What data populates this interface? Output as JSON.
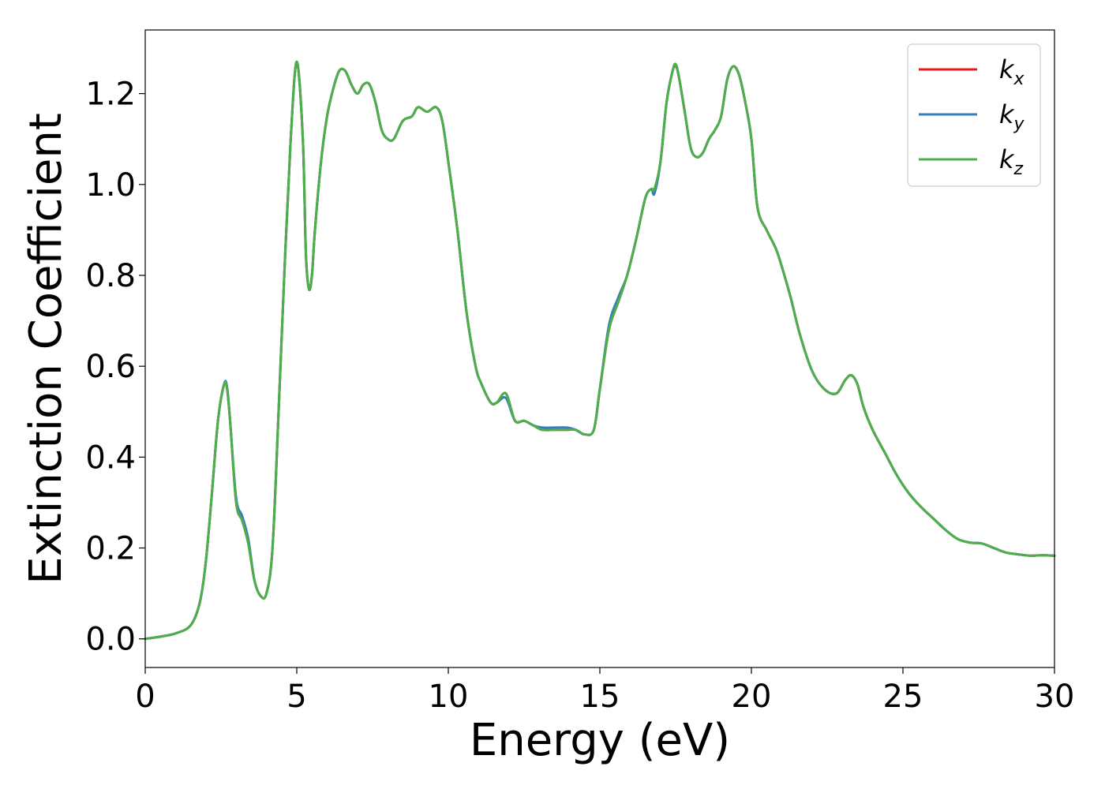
{
  "chart_data": {
    "type": "line",
    "title": "",
    "xlabel": "Energy (eV)",
    "ylabel": "Extinction Coefficient",
    "xlim": [
      0,
      30
    ],
    "ylim": [
      -0.063,
      1.34
    ],
    "grid": false,
    "legend_position": "top-right",
    "xticks": [
      0,
      5,
      10,
      15,
      20,
      25,
      30
    ],
    "yticks": [
      0.0,
      0.2,
      0.4,
      0.6,
      0.8,
      1.0,
      1.2
    ],
    "xtick_labels": [
      "0",
      "5",
      "10",
      "15",
      "20",
      "25",
      "30"
    ],
    "ytick_labels": [
      "0.0",
      "0.2",
      "0.4",
      "0.6",
      "0.8",
      "1.0",
      "1.2"
    ],
    "x": [
      0,
      0.5,
      1.0,
      1.5,
      1.8,
      2.0,
      2.2,
      2.4,
      2.6,
      2.7,
      2.8,
      3.0,
      3.2,
      3.4,
      3.6,
      3.8,
      4.0,
      4.2,
      4.4,
      4.6,
      4.8,
      5.0,
      5.2,
      5.3,
      5.4,
      5.5,
      5.6,
      5.8,
      6.0,
      6.2,
      6.4,
      6.6,
      6.8,
      7.0,
      7.2,
      7.4,
      7.6,
      7.8,
      8.0,
      8.2,
      8.5,
      8.8,
      9.0,
      9.3,
      9.6,
      9.8,
      10.0,
      10.3,
      10.6,
      10.9,
      11.1,
      11.4,
      11.6,
      11.9,
      12.2,
      12.5,
      12.8,
      13.1,
      13.5,
      13.9,
      14.2,
      14.5,
      14.8,
      15.0,
      15.3,
      15.6,
      15.9,
      16.2,
      16.5,
      16.7,
      16.8,
      17.0,
      17.2,
      17.4,
      17.5,
      17.6,
      17.8,
      18.0,
      18.2,
      18.4,
      18.6,
      18.8,
      19.0,
      19.2,
      19.4,
      19.6,
      19.8,
      20.0,
      20.2,
      20.5,
      20.8,
      21.0,
      21.3,
      21.6,
      22.0,
      22.4,
      22.8,
      23.1,
      23.3,
      23.5,
      23.7,
      24.0,
      24.4,
      24.8,
      25.2,
      25.6,
      26.0,
      26.4,
      26.8,
      27.2,
      27.6,
      28.0,
      28.4,
      28.8,
      29.2,
      29.6,
      30.0
    ],
    "series": [
      {
        "name": "k_x",
        "color": "#e41a1c",
        "values": [
          0.0,
          0.005,
          0.012,
          0.03,
          0.08,
          0.17,
          0.32,
          0.48,
          0.56,
          0.55,
          0.48,
          0.3,
          0.26,
          0.21,
          0.13,
          0.095,
          0.1,
          0.2,
          0.5,
          0.82,
          1.1,
          1.27,
          1.1,
          0.85,
          0.77,
          0.8,
          0.9,
          1.05,
          1.15,
          1.21,
          1.25,
          1.25,
          1.22,
          1.2,
          1.22,
          1.22,
          1.18,
          1.12,
          1.1,
          1.1,
          1.14,
          1.15,
          1.17,
          1.16,
          1.17,
          1.14,
          1.05,
          0.9,
          0.72,
          0.6,
          0.56,
          0.52,
          0.52,
          0.54,
          0.48,
          0.48,
          0.47,
          0.46,
          0.46,
          0.46,
          0.46,
          0.45,
          0.46,
          0.55,
          0.68,
          0.74,
          0.8,
          0.88,
          0.97,
          0.99,
          0.985,
          1.05,
          1.18,
          1.25,
          1.26,
          1.24,
          1.16,
          1.08,
          1.06,
          1.07,
          1.1,
          1.12,
          1.15,
          1.23,
          1.26,
          1.24,
          1.18,
          1.1,
          0.95,
          0.9,
          0.86,
          0.82,
          0.75,
          0.67,
          0.59,
          0.55,
          0.54,
          0.57,
          0.58,
          0.56,
          0.51,
          0.46,
          0.41,
          0.36,
          0.32,
          0.29,
          0.265,
          0.24,
          0.22,
          0.212,
          0.21,
          0.2,
          0.19,
          0.186,
          0.183,
          0.184,
          0.183
        ]
      },
      {
        "name": "k_y",
        "color": "#377eb8",
        "values": [
          0.0,
          0.005,
          0.012,
          0.03,
          0.08,
          0.17,
          0.32,
          0.48,
          0.56,
          0.555,
          0.48,
          0.31,
          0.27,
          0.22,
          0.13,
          0.095,
          0.1,
          0.2,
          0.5,
          0.82,
          1.1,
          1.27,
          1.1,
          0.85,
          0.77,
          0.8,
          0.9,
          1.05,
          1.15,
          1.21,
          1.25,
          1.25,
          1.22,
          1.2,
          1.22,
          1.22,
          1.18,
          1.12,
          1.1,
          1.1,
          1.14,
          1.15,
          1.17,
          1.16,
          1.17,
          1.14,
          1.05,
          0.9,
          0.72,
          0.6,
          0.56,
          0.52,
          0.52,
          0.53,
          0.48,
          0.48,
          0.47,
          0.465,
          0.465,
          0.465,
          0.46,
          0.45,
          0.46,
          0.55,
          0.69,
          0.75,
          0.8,
          0.88,
          0.97,
          0.99,
          0.98,
          1.05,
          1.18,
          1.25,
          1.26,
          1.24,
          1.16,
          1.08,
          1.06,
          1.07,
          1.1,
          1.12,
          1.15,
          1.23,
          1.26,
          1.24,
          1.18,
          1.1,
          0.95,
          0.9,
          0.86,
          0.82,
          0.75,
          0.67,
          0.59,
          0.55,
          0.54,
          0.57,
          0.58,
          0.56,
          0.51,
          0.46,
          0.41,
          0.36,
          0.32,
          0.29,
          0.265,
          0.24,
          0.22,
          0.212,
          0.21,
          0.2,
          0.19,
          0.186,
          0.183,
          0.184,
          0.183
        ]
      },
      {
        "name": "k_z",
        "color": "#4daf4a",
        "values": [
          0.0,
          0.005,
          0.012,
          0.03,
          0.08,
          0.17,
          0.32,
          0.48,
          0.56,
          0.55,
          0.48,
          0.3,
          0.26,
          0.21,
          0.13,
          0.095,
          0.1,
          0.2,
          0.5,
          0.82,
          1.1,
          1.27,
          1.1,
          0.85,
          0.77,
          0.8,
          0.9,
          1.05,
          1.15,
          1.21,
          1.25,
          1.25,
          1.22,
          1.2,
          1.22,
          1.22,
          1.18,
          1.12,
          1.1,
          1.1,
          1.14,
          1.15,
          1.17,
          1.16,
          1.17,
          1.14,
          1.05,
          0.9,
          0.72,
          0.6,
          0.56,
          0.52,
          0.52,
          0.54,
          0.48,
          0.48,
          0.47,
          0.46,
          0.46,
          0.46,
          0.46,
          0.45,
          0.46,
          0.55,
          0.68,
          0.74,
          0.8,
          0.88,
          0.97,
          0.99,
          0.99,
          1.05,
          1.18,
          1.25,
          1.265,
          1.24,
          1.16,
          1.08,
          1.06,
          1.07,
          1.1,
          1.12,
          1.15,
          1.23,
          1.26,
          1.24,
          1.18,
          1.1,
          0.95,
          0.9,
          0.86,
          0.82,
          0.75,
          0.67,
          0.59,
          0.55,
          0.54,
          0.57,
          0.58,
          0.56,
          0.51,
          0.46,
          0.41,
          0.36,
          0.32,
          0.29,
          0.265,
          0.24,
          0.22,
          0.212,
          0.21,
          0.2,
          0.19,
          0.186,
          0.183,
          0.184,
          0.183
        ]
      }
    ],
    "legend": [
      {
        "base": "k",
        "sub": "x",
        "color": "#e41a1c"
      },
      {
        "base": "k",
        "sub": "y",
        "color": "#377eb8"
      },
      {
        "base": "k",
        "sub": "z",
        "color": "#4daf4a"
      }
    ]
  }
}
